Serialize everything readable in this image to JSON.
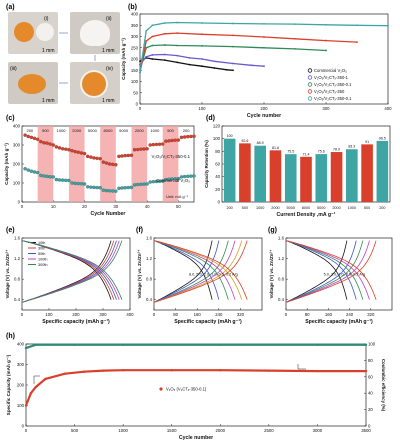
{
  "panels": {
    "a": {
      "label": "(a)",
      "roman": [
        "(i)",
        "(ii)",
        "(iii)",
        "(iv)"
      ],
      "scale": "1 mm"
    },
    "b": {
      "label": "(b)"
    },
    "c": {
      "label": "(c)"
    },
    "d": {
      "label": "(d)"
    },
    "e": {
      "label": "(e)"
    },
    "f": {
      "label": "(f)"
    },
    "g": {
      "label": "(g)"
    },
    "h": {
      "label": "(h)"
    }
  },
  "chart_data": [
    {
      "id": "b",
      "type": "scatter",
      "xlabel": "Cycle number",
      "ylabel": "Capacity (mAh g⁻¹)",
      "xlim": [
        0,
        400
      ],
      "ylim": [
        0,
        400
      ],
      "xticks": [
        0,
        100,
        200,
        300,
        400
      ],
      "yticks": [
        0,
        50,
        100,
        150,
        200,
        250,
        300,
        350,
        400
      ],
      "legend_position": "right",
      "series": [
        {
          "name": "Commercial V₂O₅",
          "color": "#111111",
          "x": [
            0,
            10,
            20,
            40,
            60,
            80,
            100,
            120,
            140,
            150
          ],
          "y": [
            190,
            205,
            200,
            195,
            185,
            175,
            168,
            160,
            152,
            150
          ]
        },
        {
          "name": "V₂O₅/V₂CTₓ-350-1",
          "color": "#6a5acd",
          "x": [
            0,
            10,
            20,
            40,
            60,
            80,
            100,
            120,
            150,
            180,
            200
          ],
          "y": [
            175,
            210,
            218,
            220,
            215,
            205,
            200,
            190,
            180,
            172,
            168
          ]
        },
        {
          "name": "V₂O₅/V₂CTₓ-350-0.1",
          "color": "#2e8b57",
          "x": [
            0,
            10,
            20,
            40,
            60,
            100,
            150,
            200,
            250,
            300
          ],
          "y": [
            150,
            250,
            260,
            262,
            260,
            258,
            255,
            250,
            245,
            238
          ]
        },
        {
          "name": "V₂O₅/V₂CTₓ-350",
          "color": "#d9402b",
          "x": [
            0,
            10,
            20,
            40,
            60,
            100,
            150,
            200,
            250,
            300,
            350
          ],
          "y": [
            140,
            280,
            300,
            312,
            315,
            310,
            305,
            298,
            290,
            282,
            275
          ]
        },
        {
          "name": "V₂O₅/V₂CTₓ-350-0.1",
          "color": "#3fa4a4",
          "x": [
            0,
            10,
            20,
            40,
            60,
            100,
            150,
            200,
            250,
            300,
            350,
            400
          ],
          "y": [
            140,
            325,
            350,
            360,
            362,
            360,
            358,
            356,
            355,
            352,
            350,
            348
          ]
        }
      ]
    },
    {
      "id": "c",
      "type": "scatter",
      "xlabel": "Cycle Number",
      "ylabel": "Capacity (mAh g⁻¹)",
      "xlim": [
        0,
        55
      ],
      "ylim": [
        0,
        400
      ],
      "xticks": [
        0,
        10,
        20,
        30,
        40,
        50
      ],
      "yticks": [
        0,
        100,
        200,
        300,
        400
      ],
      "rate_labels": [
        "200",
        "500",
        "1000",
        "2000",
        "5000",
        "8000",
        "5000",
        "2000",
        "1000",
        "500",
        "200"
      ],
      "unit_label": "Unit: mA g⁻¹",
      "series": [
        {
          "name": "V₂O₅/V₂CTₓ-350-0.1",
          "color": "#d9402b",
          "values": [
            352,
            345,
            340,
            335,
            330,
            318,
            312,
            310,
            305,
            300,
            290,
            285,
            280,
            278,
            275,
            270,
            265,
            262,
            258,
            255,
            240,
            236,
            232,
            230,
            228,
            210,
            205,
            200,
            198,
            196,
            240,
            242,
            244,
            245,
            246,
            275,
            276,
            278,
            279,
            280,
            300,
            302,
            303,
            304,
            305,
            320,
            322,
            324,
            325,
            326,
            340,
            342,
            344,
            345,
            346
          ]
        },
        {
          "name": "Commercial V₂O₅",
          "color": "#3fa4a4",
          "values": [
            175,
            168,
            162,
            158,
            155,
            140,
            137,
            135,
            133,
            132,
            118,
            116,
            115,
            114,
            113,
            100,
            98,
            97,
            96,
            95,
            80,
            78,
            77,
            76,
            75,
            62,
            60,
            59,
            58,
            57,
            72,
            74,
            75,
            76,
            77,
            90,
            92,
            93,
            94,
            95,
            105,
            107,
            108,
            109,
            110,
            118,
            120,
            121,
            122,
            123,
            132,
            134,
            135,
            136,
            137
          ]
        }
      ]
    },
    {
      "id": "d",
      "type": "bar",
      "xlabel": "Current Density ,mA g⁻¹",
      "ylabel": "Capacity Retention (%)",
      "ylim": [
        0,
        120
      ],
      "yticks": [
        0,
        20,
        40,
        60,
        80,
        100,
        120
      ],
      "categories": [
        "200",
        "500",
        "1000",
        "2000",
        "5000",
        "8000",
        "5000",
        "2000",
        "1000",
        "500",
        "200"
      ],
      "values": [
        100,
        92.6,
        88.9,
        81.6,
        75.5,
        71.4,
        75.6,
        78.9,
        83.3,
        91.0,
        96.5
      ],
      "colors": [
        "#3fa4a4",
        "#d9402b",
        "#3fa4a4",
        "#d9402b",
        "#3fa4a4",
        "#d9402b",
        "#3fa4a4",
        "#d9402b",
        "#3fa4a4",
        "#d9402b",
        "#3fa4a4"
      ]
    },
    {
      "id": "e",
      "type": "line",
      "xlabel": "Specific capacity (mAh g⁻¹)",
      "ylabel": "Voltage (V) vs. Zn/Zn²⁺",
      "xlim": [
        0,
        400
      ],
      "ylim": [
        0.2,
        1.6
      ],
      "xticks": [
        0,
        100,
        200,
        300,
        400
      ],
      "yticks": [
        0.4,
        0.8,
        1.2,
        1.6
      ],
      "series": [
        {
          "name": "10th",
          "color": "#111111",
          "cap": 330
        },
        {
          "name": "30th",
          "color": "#d9402b",
          "cap": 340
        },
        {
          "name": "50th",
          "color": "#3c57c9",
          "cap": 350
        },
        {
          "name": "100th",
          "color": "#c040c0",
          "cap": 360
        },
        {
          "name": "300th",
          "color": "#2e8b57",
          "cap": 370
        }
      ]
    },
    {
      "id": "f",
      "type": "line",
      "xlabel": "Specific capacity (mAh g⁻¹)",
      "ylabel": "Voltage (V) vs. Zn/Zn²⁺",
      "xlim": [
        0,
        400
      ],
      "ylim": [
        0.2,
        1.6
      ],
      "xticks": [
        0,
        80,
        160,
        240,
        320
      ],
      "yticks": [
        0.4,
        0.8,
        1.2,
        1.6
      ],
      "annotation": "8.0, 5.0, 2.0, 1.0, 0.5, 0.2 A/g",
      "series": [
        {
          "name": "8.0 A/g",
          "color": "#111111",
          "cap": 215
        },
        {
          "name": "5.0 A/g",
          "color": "#3c57c9",
          "cap": 240
        },
        {
          "name": "2.0 A/g",
          "color": "#2e8b57",
          "cap": 275
        },
        {
          "name": "1.0 A/g",
          "color": "#c040c0",
          "cap": 300
        },
        {
          "name": "0.5 A/g",
          "color": "#d9a020",
          "cap": 325
        },
        {
          "name": "0.2 A/g",
          "color": "#d9402b",
          "cap": 345
        }
      ]
    },
    {
      "id": "g",
      "type": "line",
      "xlabel": "Specific capacity (mAh g⁻¹)",
      "ylabel": "Voltage (V) vs. Zn/Zn²⁺",
      "xlim": [
        0,
        400
      ],
      "ylim": [
        0.2,
        1.6
      ],
      "xticks": [
        0,
        80,
        160,
        240,
        320
      ],
      "yticks": [
        0.4,
        0.8,
        1.2,
        1.6
      ],
      "annotation": "5.0, 2.0, 1.0, 0.5, 0.2 A/g",
      "series": [
        {
          "name": "5.0 A/g",
          "color": "#111111",
          "cap": 230
        },
        {
          "name": "2.0 A/g",
          "color": "#3c57c9",
          "cap": 265
        },
        {
          "name": "1.0 A/g",
          "color": "#2e8b57",
          "cap": 290
        },
        {
          "name": "0.5 A/g",
          "color": "#c040c0",
          "cap": 315
        },
        {
          "name": "0.2 A/g",
          "color": "#d9402b",
          "cap": 340
        }
      ]
    },
    {
      "id": "h",
      "type": "scatter",
      "xlabel": "Cycle number",
      "ylabel": "Specific Capacity (mAh g⁻¹)",
      "ylabel2": "Coulombic efficiency (%)",
      "xlim": [
        0,
        3500
      ],
      "ylim": [
        0,
        400
      ],
      "y2lim": [
        0,
        100
      ],
      "xticks": [
        0,
        500,
        1000,
        1500,
        2000,
        2500,
        3000,
        3500
      ],
      "yticks": [
        0,
        100,
        200,
        300,
        400
      ],
      "y2ticks": [
        0,
        20,
        40,
        60,
        80,
        100
      ],
      "series": [
        {
          "name": "V₂O₅ (V₂CTₓ-350-0.1)",
          "color": "#d9402b",
          "x": [
            0,
            50,
            100,
            200,
            400,
            600,
            800,
            1000,
            1500,
            2000,
            2500,
            3000,
            3500
          ],
          "y": [
            100,
            160,
            190,
            230,
            255,
            265,
            270,
            272,
            272,
            272,
            270,
            268,
            268
          ]
        },
        {
          "name": "Coulombic efficiency",
          "color": "#2e8b7a",
          "axis": "right",
          "x": [
            0,
            100,
            500,
            1000,
            2000,
            3000,
            3500
          ],
          "y": [
            95,
            99,
            99,
            99,
            99,
            99,
            99
          ]
        }
      ]
    }
  ]
}
